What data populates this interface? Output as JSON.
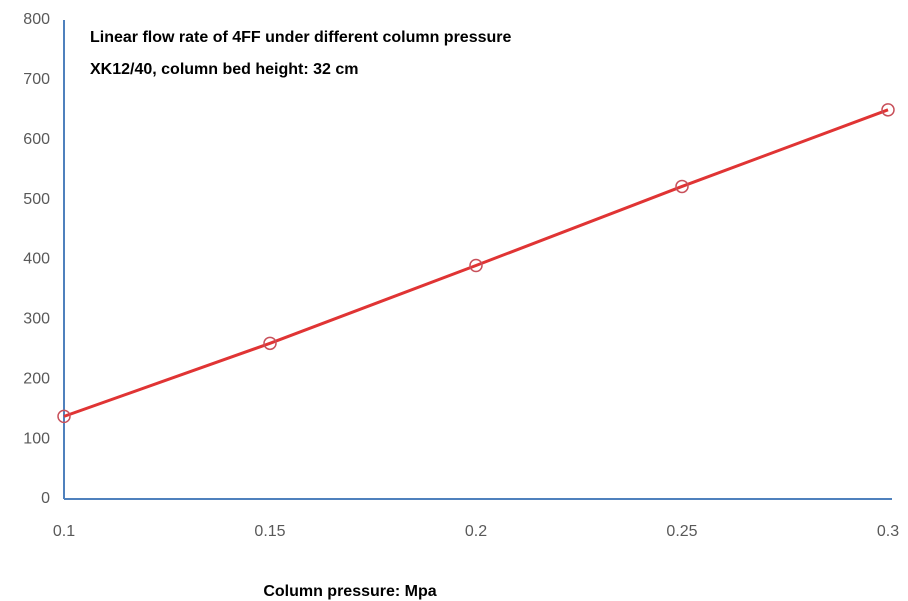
{
  "chart_data": {
    "type": "line",
    "title": "Linear flow rate of 4FF under different column pressure",
    "subtitle": "XK12/40, column bed height: 32 cm",
    "x_label": "Column pressure: Mpa",
    "x": [
      0.1,
      0.15,
      0.2,
      0.25,
      0.3
    ],
    "values": [
      138,
      260,
      390,
      522,
      650
    ],
    "color": "#e03434",
    "marker_color": "#c8505a",
    "xlim": [
      0.1,
      0.3
    ],
    "xticks": [
      0.1,
      0.15,
      0.2,
      0.25,
      0.3
    ],
    "ylim": [
      0,
      800
    ],
    "yticks": [
      0,
      100,
      200,
      300,
      400,
      500,
      600,
      700,
      800
    ],
    "grid": false
  }
}
